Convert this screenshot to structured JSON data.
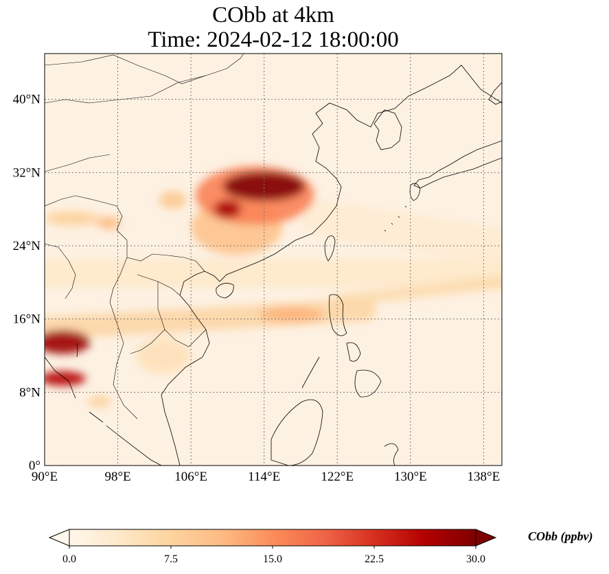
{
  "title": {
    "line1": "CObb at 4km",
    "line2": "Time: 2024-02-12 18:00:00"
  },
  "map": {
    "projection": "PlateCarree",
    "lon_range": [
      90,
      140
    ],
    "lat_range": [
      0,
      45
    ],
    "gridlines": "dotted",
    "coastlines": true,
    "country_borders": true,
    "lon_ticks": [
      {
        "value": 90,
        "label": "90°E"
      },
      {
        "value": 98,
        "label": "98°E"
      },
      {
        "value": 106,
        "label": "106°E"
      },
      {
        "value": 114,
        "label": "114°E"
      },
      {
        "value": 122,
        "label": "122°E"
      },
      {
        "value": 130,
        "label": "130°E"
      },
      {
        "value": 138,
        "label": "138°E"
      }
    ],
    "lat_ticks": [
      {
        "value": 0,
        "label": "0°"
      },
      {
        "value": 8,
        "label": "8°N"
      },
      {
        "value": 16,
        "label": "16°N"
      },
      {
        "value": 24,
        "label": "24°N"
      },
      {
        "value": 32,
        "label": "32°N"
      },
      {
        "value": 40,
        "label": "40°N"
      }
    ],
    "field_features": [
      {
        "kind": "plume",
        "lon": 114,
        "lat": 30.5,
        "rx": 4.5,
        "ry": 1.6,
        "value": 30
      },
      {
        "kind": "plume",
        "lon": 110,
        "lat": 28,
        "rx": 1.5,
        "ry": 1.0,
        "value": 27
      },
      {
        "kind": "plume",
        "lon": 113,
        "lat": 29.5,
        "rx": 6.5,
        "ry": 3.2,
        "value": 16
      },
      {
        "kind": "plume",
        "lon": 111,
        "lat": 26,
        "rx": 5,
        "ry": 3,
        "value": 10
      },
      {
        "kind": "plume",
        "lon": 104,
        "lat": 29,
        "rx": 1.5,
        "ry": 1.0,
        "value": 9
      },
      {
        "kind": "plume",
        "lon": 97,
        "lat": 26.5,
        "rx": 1.3,
        "ry": 0.7,
        "value": 11
      },
      {
        "kind": "plume",
        "lon": 93,
        "lat": 27,
        "rx": 3,
        "ry": 0.8,
        "value": 8
      },
      {
        "kind": "plume",
        "lon": 92,
        "lat": 13.5,
        "rx": 3,
        "ry": 1.3,
        "value": 28
      },
      {
        "kind": "plume",
        "lon": 92,
        "lat": 9.5,
        "rx": 2.5,
        "ry": 0.8,
        "value": 26
      },
      {
        "kind": "plume",
        "lon": 96,
        "lat": 7,
        "rx": 1.3,
        "ry": 0.6,
        "value": 8
      },
      {
        "kind": "plume",
        "lon": 117,
        "lat": 16.5,
        "rx": 3.5,
        "ry": 0.8,
        "value": 12
      },
      {
        "kind": "plume",
        "lon": 103,
        "lat": 12,
        "rx": 3,
        "ry": 2,
        "value": 5
      },
      {
        "kind": "band",
        "lon1": 90,
        "lat1": 21,
        "lon2": 140,
        "lat2": 21,
        "width": 3,
        "value": 4
      },
      {
        "kind": "band",
        "lon1": 90,
        "lat1": 15,
        "lon2": 125,
        "lat2": 17,
        "width": 2.5,
        "value": 8
      },
      {
        "kind": "band",
        "lon1": 122,
        "lat1": 18,
        "lon2": 140,
        "lat2": 20,
        "width": 1.3,
        "value": 7
      },
      {
        "kind": "band",
        "lon1": 120,
        "lat1": 27,
        "lon2": 140,
        "lat2": 24,
        "width": 4,
        "value": 3
      }
    ],
    "color": {
      "min": "#fff7ec",
      "max": "#7f0000"
    }
  },
  "colorbar": {
    "label": "CObb (ppbv)",
    "vmin": 0.0,
    "vmax": 30.0,
    "extend": "both",
    "ticks": [
      {
        "value": 0.0,
        "label": "0.0"
      },
      {
        "value": 7.5,
        "label": "7.5"
      },
      {
        "value": 15.0,
        "label": "15.0"
      },
      {
        "value": 22.5,
        "label": "22.5"
      },
      {
        "value": 30.0,
        "label": "30.0"
      }
    ],
    "colormap": "OrRd",
    "stops": [
      "#fff7ec",
      "#fee8c8",
      "#fdd49e",
      "#fdbb84",
      "#fc8d59",
      "#ef6548",
      "#d7301f",
      "#b30000",
      "#7f0000"
    ]
  }
}
